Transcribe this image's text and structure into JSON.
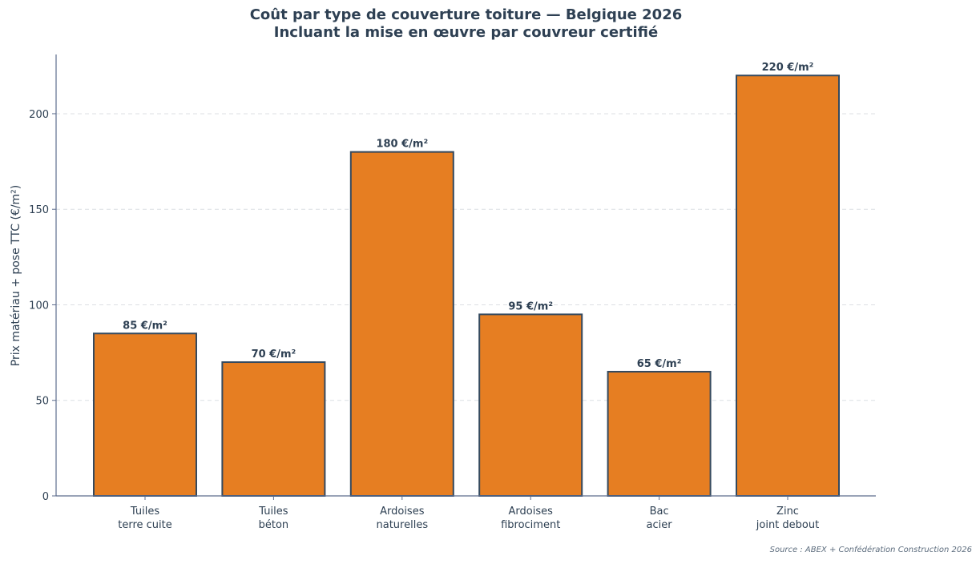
{
  "chart_data": {
    "type": "bar",
    "title": "Coût par type de couverture toiture — Belgique 2026",
    "subtitle": "Incluant la mise en œuvre par couvreur certifié",
    "xlabel": "",
    "ylabel": "Prix matériau + pose TTC (€/m²)",
    "categories": [
      [
        "Tuiles",
        "terre cuite"
      ],
      [
        "Tuiles",
        "béton"
      ],
      [
        "Ardoises",
        "naturelles"
      ],
      [
        "Ardoises",
        "fibrociment"
      ],
      [
        "Bac",
        "acier"
      ],
      [
        "Zinc",
        "joint debout"
      ]
    ],
    "values": [
      85,
      70,
      180,
      95,
      65,
      220
    ],
    "data_labels": [
      "85 €/m²",
      "70 €/m²",
      "180 €/m²",
      "95 €/m²",
      "65 €/m²",
      "220 €/m²"
    ],
    "ylim": [
      0,
      231
    ],
    "yticks": [
      0,
      50,
      100,
      150,
      200
    ],
    "grid": true,
    "bar_color": "#e67e22",
    "bar_edge_color": "#34495e",
    "axis_color": "#5d6d8e",
    "text_color": "#2e4053",
    "source": "Source : ABEX + Confédération Construction 2026"
  }
}
